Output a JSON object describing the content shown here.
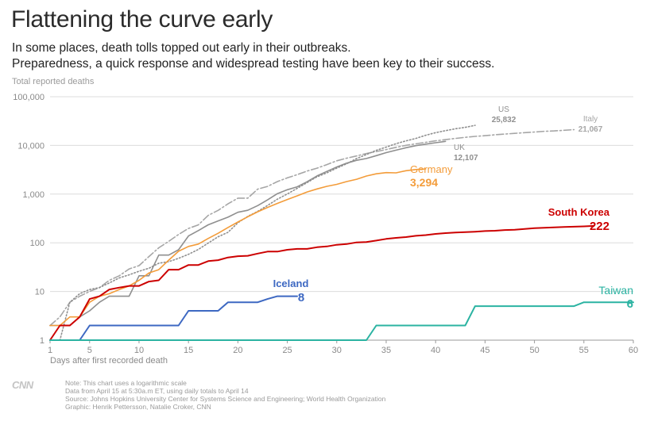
{
  "title": "Flattening the curve early",
  "subtitle_line1": "In some places, death tolls topped out early in their outbreaks.",
  "subtitle_line2": "Preparedness, a quick response and widespread testing have been key to their success.",
  "logo_text": "CNN",
  "notes": [
    "Note: This chart uses a logarithmic scale",
    "Data from April 15 at 5:30a.m ET, using daily totals to April 14",
    "Source: Johns Hopkins University Center for Systems Science and Engineering; World Health Organization",
    "Graphic: Henrik Pettersson, Natalie Croker, CNN"
  ],
  "chart_data": {
    "type": "line",
    "title": "Flattening the curve early",
    "xlabel": "Days after first recorded death",
    "ylabel": "Total reported deaths",
    "y_scale": "log",
    "xlim": [
      1,
      60
    ],
    "ylim": [
      1,
      100000
    ],
    "x_ticks": [
      1,
      5,
      10,
      15,
      20,
      25,
      30,
      35,
      40,
      45,
      50,
      55,
      60
    ],
    "y_ticks": [
      {
        "value": 1,
        "label": "1"
      },
      {
        "value": 10,
        "label": "10"
      },
      {
        "value": 100,
        "label": "100"
      },
      {
        "value": 1000,
        "label": "1,000"
      },
      {
        "value": 10000,
        "label": "10,000"
      },
      {
        "value": 100000,
        "label": "100,000"
      }
    ],
    "grid": "horizontal",
    "series": [
      {
        "name": "Italy",
        "value_label": "21,067",
        "color": "#a6a6a6",
        "dash": "dashdot",
        "emphasis": false,
        "points": [
          [
            1,
            2
          ],
          [
            2,
            3
          ],
          [
            3,
            6
          ],
          [
            4,
            8
          ],
          [
            5,
            10
          ],
          [
            6,
            12
          ],
          [
            7,
            17
          ],
          [
            8,
            21
          ],
          [
            9,
            29
          ],
          [
            10,
            34
          ],
          [
            11,
            52
          ],
          [
            12,
            79
          ],
          [
            13,
            107
          ],
          [
            14,
            148
          ],
          [
            15,
            197
          ],
          [
            16,
            233
          ],
          [
            17,
            366
          ],
          [
            18,
            463
          ],
          [
            19,
            631
          ],
          [
            20,
            827
          ],
          [
            21,
            827
          ],
          [
            22,
            1266
          ],
          [
            23,
            1441
          ],
          [
            24,
            1809
          ],
          [
            25,
            2158
          ],
          [
            26,
            2503
          ],
          [
            27,
            2978
          ],
          [
            28,
            3405
          ],
          [
            29,
            4032
          ],
          [
            30,
            4825
          ],
          [
            31,
            5476
          ],
          [
            32,
            6077
          ],
          [
            33,
            6820
          ],
          [
            34,
            7503
          ],
          [
            35,
            8215
          ],
          [
            36,
            9134
          ],
          [
            37,
            10023
          ],
          [
            38,
            10779
          ],
          [
            39,
            11591
          ],
          [
            40,
            12428
          ],
          [
            41,
            13155
          ],
          [
            42,
            13915
          ],
          [
            43,
            14681
          ],
          [
            44,
            15362
          ],
          [
            45,
            15887
          ],
          [
            46,
            16523
          ],
          [
            47,
            17127
          ],
          [
            48,
            17669
          ],
          [
            49,
            18279
          ],
          [
            50,
            18849
          ],
          [
            51,
            19468
          ],
          [
            52,
            19899
          ],
          [
            53,
            20465
          ],
          [
            54,
            21067
          ]
        ]
      },
      {
        "name": "US",
        "value_label": "25,832",
        "color": "#8f8f8f",
        "dash": "dotted",
        "emphasis": false,
        "points": [
          [
            1,
            1
          ],
          [
            2,
            1
          ],
          [
            3,
            6
          ],
          [
            4,
            9
          ],
          [
            5,
            11
          ],
          [
            6,
            12
          ],
          [
            7,
            15
          ],
          [
            8,
            19
          ],
          [
            9,
            22
          ],
          [
            10,
            26
          ],
          [
            11,
            30
          ],
          [
            12,
            38
          ],
          [
            13,
            41
          ],
          [
            14,
            48
          ],
          [
            15,
            58
          ],
          [
            16,
            73
          ],
          [
            17,
            99
          ],
          [
            18,
            133
          ],
          [
            19,
            164
          ],
          [
            20,
            258
          ],
          [
            21,
            349
          ],
          [
            22,
            442
          ],
          [
            23,
            586
          ],
          [
            24,
            786
          ],
          [
            25,
            1008
          ],
          [
            26,
            1316
          ],
          [
            27,
            1726
          ],
          [
            28,
            2265
          ],
          [
            29,
            2731
          ],
          [
            30,
            3420
          ],
          [
            31,
            4192
          ],
          [
            32,
            5367
          ],
          [
            33,
            6501
          ],
          [
            34,
            7921
          ],
          [
            35,
            9246
          ],
          [
            36,
            10855
          ],
          [
            37,
            12375
          ],
          [
            38,
            13894
          ],
          [
            39,
            16191
          ],
          [
            40,
            18270
          ],
          [
            41,
            20071
          ],
          [
            42,
            22020
          ],
          [
            43,
            23529
          ],
          [
            44,
            25832
          ]
        ]
      },
      {
        "name": "UK",
        "value_label": "12,107",
        "color": "#8f8f8f",
        "dash": "solid",
        "emphasis": false,
        "points": [
          [
            1,
            2
          ],
          [
            2,
            2
          ],
          [
            3,
            2
          ],
          [
            4,
            3
          ],
          [
            5,
            4
          ],
          [
            6,
            6
          ],
          [
            7,
            8
          ],
          [
            8,
            8
          ],
          [
            9,
            8
          ],
          [
            10,
            21
          ],
          [
            11,
            21
          ],
          [
            12,
            56
          ],
          [
            13,
            56
          ],
          [
            14,
            72
          ],
          [
            15,
            138
          ],
          [
            16,
            178
          ],
          [
            17,
            234
          ],
          [
            18,
            282
          ],
          [
            19,
            336
          ],
          [
            20,
            423
          ],
          [
            21,
            466
          ],
          [
            22,
            580
          ],
          [
            23,
            761
          ],
          [
            24,
            1021
          ],
          [
            25,
            1231
          ],
          [
            26,
            1411
          ],
          [
            27,
            1793
          ],
          [
            28,
            2357
          ],
          [
            29,
            2926
          ],
          [
            30,
            3611
          ],
          [
            31,
            4320
          ],
          [
            32,
            4943
          ],
          [
            33,
            5385
          ],
          [
            34,
            6171
          ],
          [
            35,
            7111
          ],
          [
            36,
            7993
          ],
          [
            37,
            8974
          ],
          [
            38,
            9892
          ],
          [
            39,
            10629
          ],
          [
            40,
            11347
          ],
          [
            41,
            12107
          ]
        ]
      },
      {
        "name": "Germany",
        "value_label": "3,294",
        "color": "#f39c3a",
        "dash": "solid",
        "emphasis": false,
        "points": [
          [
            1,
            2
          ],
          [
            2,
            2
          ],
          [
            3,
            3
          ],
          [
            4,
            3
          ],
          [
            5,
            6
          ],
          [
            6,
            8
          ],
          [
            7,
            9
          ],
          [
            8,
            11
          ],
          [
            9,
            13
          ],
          [
            10,
            17
          ],
          [
            11,
            24
          ],
          [
            12,
            28
          ],
          [
            13,
            44
          ],
          [
            14,
            67
          ],
          [
            15,
            84
          ],
          [
            16,
            94
          ],
          [
            17,
            123
          ],
          [
            18,
            157
          ],
          [
            19,
            206
          ],
          [
            20,
            267
          ],
          [
            21,
            342
          ],
          [
            22,
            433
          ],
          [
            23,
            533
          ],
          [
            24,
            645
          ],
          [
            25,
            775
          ],
          [
            26,
            920
          ],
          [
            27,
            1107
          ],
          [
            28,
            1275
          ],
          [
            29,
            1444
          ],
          [
            30,
            1584
          ],
          [
            31,
            1810
          ],
          [
            32,
            2016
          ],
          [
            33,
            2349
          ],
          [
            34,
            2607
          ],
          [
            35,
            2767
          ],
          [
            36,
            2736
          ],
          [
            37,
            3022
          ],
          [
            38,
            3194
          ],
          [
            39,
            3294
          ]
        ]
      },
      {
        "name": "South Korea",
        "value_label": "222",
        "color": "#cc0000",
        "dash": "solid",
        "emphasis": true,
        "points": [
          [
            1,
            1
          ],
          [
            2,
            2
          ],
          [
            3,
            2
          ],
          [
            4,
            3
          ],
          [
            5,
            7
          ],
          [
            6,
            8
          ],
          [
            7,
            11
          ],
          [
            8,
            12
          ],
          [
            9,
            13
          ],
          [
            10,
            13
          ],
          [
            11,
            16
          ],
          [
            12,
            17
          ],
          [
            13,
            28
          ],
          [
            14,
            28
          ],
          [
            15,
            35
          ],
          [
            16,
            35
          ],
          [
            17,
            42
          ],
          [
            18,
            44
          ],
          [
            19,
            50
          ],
          [
            20,
            53
          ],
          [
            21,
            54
          ],
          [
            22,
            60
          ],
          [
            23,
            66
          ],
          [
            24,
            66
          ],
          [
            25,
            72
          ],
          [
            26,
            75
          ],
          [
            27,
            75
          ],
          [
            28,
            81
          ],
          [
            29,
            84
          ],
          [
            30,
            91
          ],
          [
            31,
            94
          ],
          [
            32,
            102
          ],
          [
            33,
            104
          ],
          [
            34,
            111
          ],
          [
            35,
            120
          ],
          [
            36,
            126
          ],
          [
            37,
            131
          ],
          [
            38,
            139
          ],
          [
            39,
            144
          ],
          [
            40,
            152
          ],
          [
            41,
            158
          ],
          [
            42,
            162
          ],
          [
            43,
            165
          ],
          [
            44,
            169
          ],
          [
            45,
            174
          ],
          [
            46,
            177
          ],
          [
            47,
            183
          ],
          [
            48,
            186
          ],
          [
            49,
            192
          ],
          [
            50,
            200
          ],
          [
            51,
            204
          ],
          [
            52,
            208
          ],
          [
            53,
            211
          ],
          [
            54,
            214
          ],
          [
            55,
            217
          ],
          [
            56,
            222
          ]
        ]
      },
      {
        "name": "Iceland",
        "value_label": "8",
        "color": "#3d68c2",
        "dash": "solid",
        "emphasis": true,
        "points": [
          [
            1,
            1
          ],
          [
            2,
            1
          ],
          [
            3,
            1
          ],
          [
            4,
            1
          ],
          [
            5,
            2
          ],
          [
            6,
            2
          ],
          [
            7,
            2
          ],
          [
            8,
            2
          ],
          [
            9,
            2
          ],
          [
            10,
            2
          ],
          [
            11,
            2
          ],
          [
            12,
            2
          ],
          [
            13,
            2
          ],
          [
            14,
            2
          ],
          [
            15,
            4
          ],
          [
            16,
            4
          ],
          [
            17,
            4
          ],
          [
            18,
            4
          ],
          [
            19,
            6
          ],
          [
            20,
            6
          ],
          [
            21,
            6
          ],
          [
            22,
            6
          ],
          [
            23,
            7
          ],
          [
            24,
            8
          ],
          [
            25,
            8
          ],
          [
            26,
            8
          ]
        ]
      },
      {
        "name": "Taiwan",
        "value_label": "6",
        "color": "#2bb3a2",
        "dash": "solid",
        "emphasis": true,
        "points": [
          [
            1,
            1
          ],
          [
            33,
            1
          ],
          [
            34,
            2
          ],
          [
            42,
            2
          ],
          [
            43,
            2
          ],
          [
            44,
            5
          ],
          [
            54,
            5
          ],
          [
            55,
            6
          ],
          [
            60,
            6
          ]
        ]
      }
    ]
  }
}
